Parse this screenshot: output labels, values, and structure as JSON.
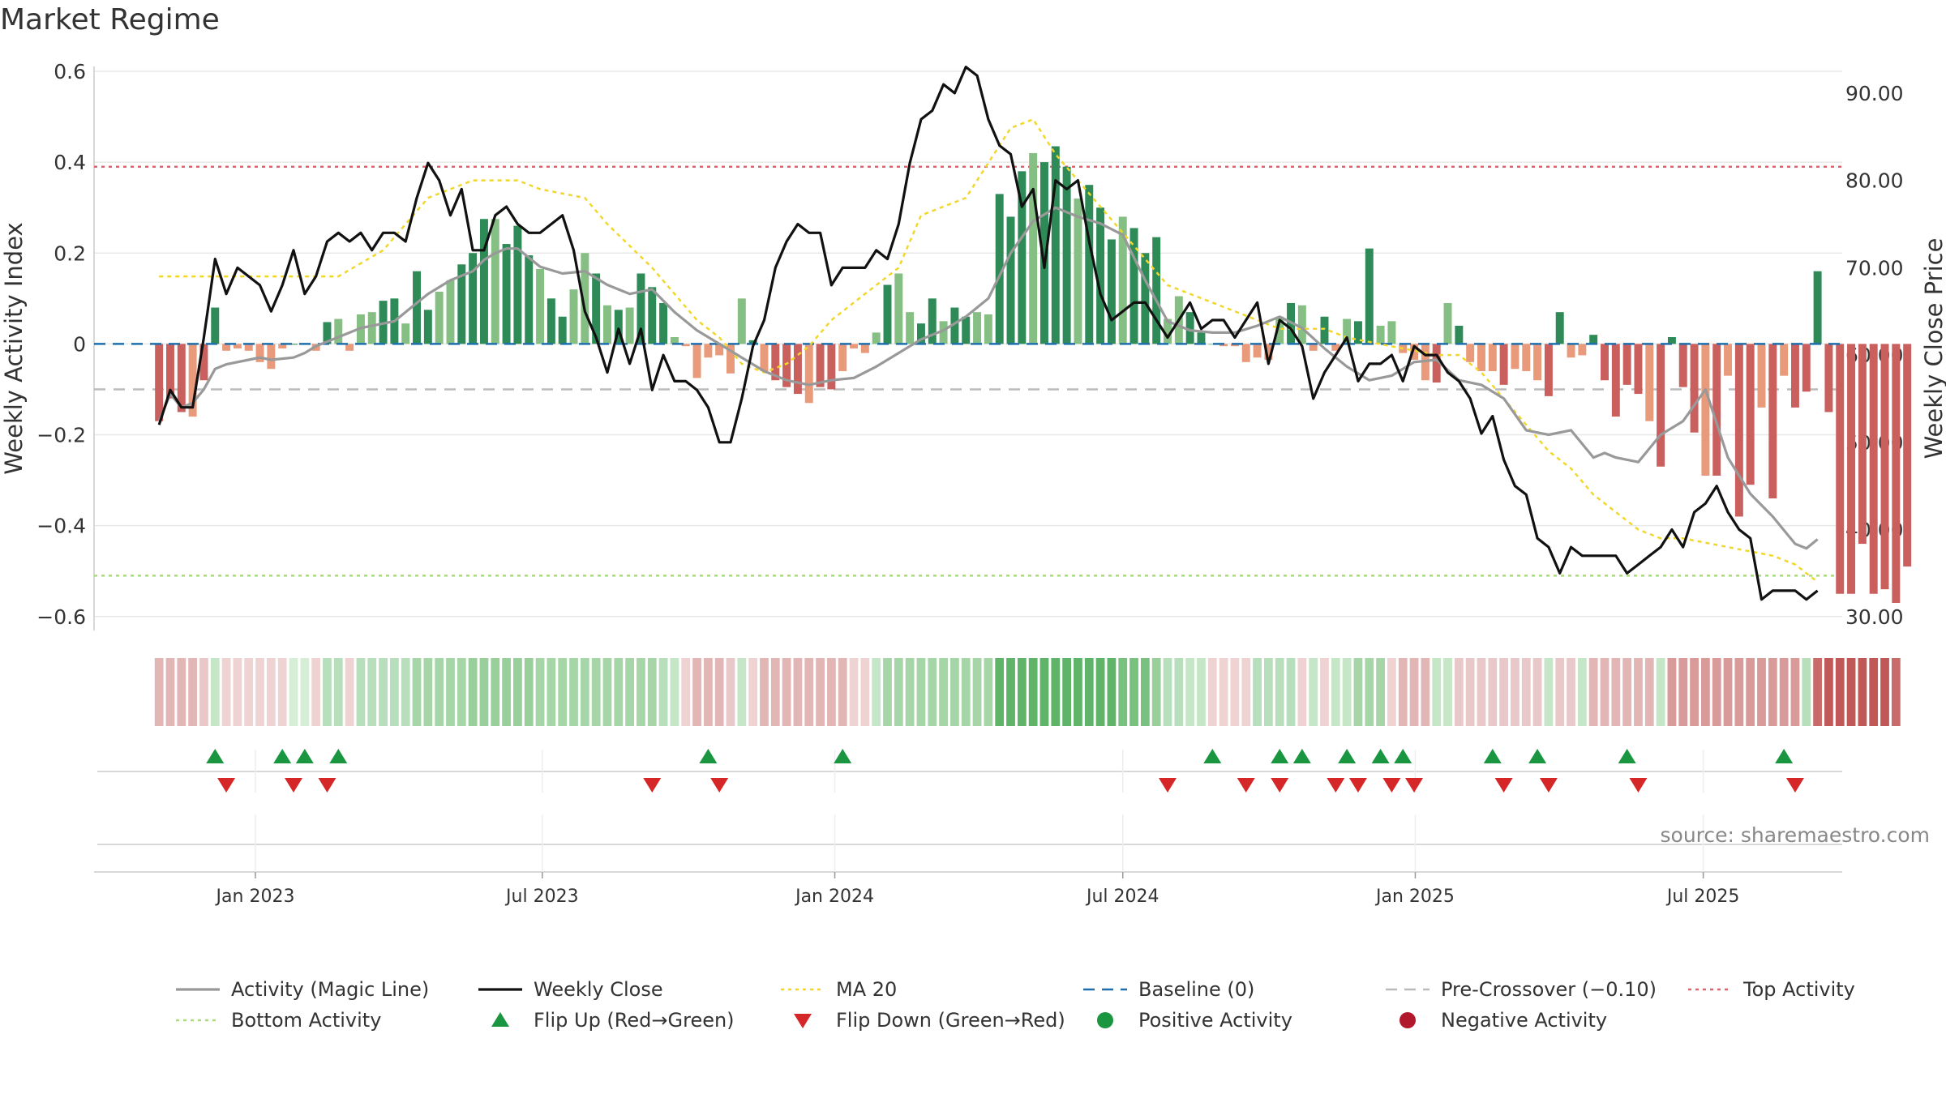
{
  "title": "Market Regime",
  "source": "source: sharemaestro.com",
  "chart_data": {
    "type": "bar",
    "title": "Market Regime",
    "ylabel_left": "Weekly Activity Index",
    "ylabel_right": "Weekly Close Price",
    "ylim_left": [
      -0.62,
      0.6
    ],
    "ylim_right": [
      29.0,
      92.5
    ],
    "yticks_left": [
      "0.6",
      "0.4",
      "0.2",
      "0",
      "−0.2",
      "−0.4",
      "−0.6"
    ],
    "yticks_left_values": [
      0.6,
      0.4,
      0.2,
      0,
      -0.2,
      -0.4,
      -0.6
    ],
    "yticks_right": [
      "90.00",
      "80.00",
      "70.00",
      "60.00",
      "50.00",
      "40.00",
      "30.00"
    ],
    "yticks_right_values": [
      90,
      80,
      70,
      60,
      50,
      40,
      30
    ],
    "x_ticks": [
      "Jan 2023",
      "Jul 2023",
      "Jan 2024",
      "Jul 2024",
      "Jan 2025",
      "Jul 2025"
    ],
    "x_tick_weeks": [
      8.6,
      34.2,
      60.3,
      86.0,
      112.1,
      137.8
    ],
    "x_range_weeks": [
      -5.8,
      150.2
    ],
    "grid": true,
    "legend_position": "bottom",
    "reference_lines": {
      "baseline": 0,
      "pre_crossover": -0.1,
      "top_activity": 0.39,
      "bottom_activity": -0.51
    },
    "colors": {
      "bar_pos_strong": "#2e8b57",
      "bar_pos_weak": "#86bf84",
      "bar_neg_strong": "#c9605e",
      "bar_neg_weak": "#e89a7b",
      "activity_line": "#999999",
      "weekly_close": "#111111",
      "ma20": "#f2d72a",
      "baseline": "#1f6fae",
      "pre_crossover": "#bbbbbb",
      "top_activity": "#e0636f",
      "bottom_activity": "#a9dc7c",
      "flip_up": "#1a9641",
      "flip_down": "#d62728",
      "positive_activity": "#1a9641",
      "negative_activity": "#b2182b"
    },
    "series": [
      {
        "name": "Weekly Activity Index",
        "kind": "bar",
        "values": [
          -0.17,
          -0.12,
          -0.15,
          -0.16,
          -0.08,
          0.08,
          -0.015,
          -0.01,
          -0.015,
          -0.04,
          -0.055,
          -0.01,
          0.0,
          0.0,
          -0.015,
          0.048,
          0.055,
          -0.015,
          0.065,
          0.07,
          0.095,
          0.1,
          0.045,
          0.16,
          0.075,
          0.115,
          0.14,
          0.175,
          0.2,
          0.275,
          0.275,
          0.22,
          0.26,
          0.195,
          0.165,
          0.1,
          0.06,
          0.12,
          0.2,
          0.155,
          0.085,
          0.075,
          0.08,
          0.155,
          0.125,
          0.09,
          0.015,
          -0.005,
          -0.075,
          -0.03,
          -0.025,
          -0.065,
          0.1,
          0.008,
          -0.06,
          -0.08,
          -0.095,
          -0.11,
          -0.13,
          -0.095,
          -0.1,
          -0.06,
          -0.01,
          -0.02,
          0.025,
          0.13,
          0.155,
          0.07,
          0.045,
          0.1,
          0.05,
          0.08,
          0.06,
          0.07,
          0.065,
          0.33,
          0.28,
          0.38,
          0.42,
          0.4,
          0.435,
          0.39,
          0.32,
          0.35,
          0.3,
          0.23,
          0.28,
          0.255,
          0.2,
          0.235,
          0.055,
          0.105,
          0.07,
          0.025,
          0.0,
          -0.005,
          -0.005,
          -0.04,
          -0.03,
          -0.035,
          0.06,
          0.09,
          0.085,
          -0.015,
          0.06,
          -0.015,
          0.055,
          0.05,
          0.21,
          0.04,
          0.05,
          -0.02,
          -0.035,
          -0.08,
          -0.085,
          0.09,
          0.04,
          -0.04,
          -0.06,
          -0.06,
          -0.09,
          -0.055,
          -0.06,
          -0.08,
          -0.115,
          0.07,
          -0.03,
          -0.025,
          0.02,
          -0.08,
          -0.16,
          -0.09,
          -0.11,
          -0.17,
          -0.27,
          0.015,
          -0.095,
          -0.195,
          -0.29,
          -0.29,
          -0.07,
          -0.38,
          -0.31,
          -0.14,
          -0.34,
          -0.07,
          -0.14,
          -0.105,
          0.16,
          -0.15,
          -0.55,
          -0.55,
          -0.44,
          -0.55,
          -0.54,
          -0.57,
          -0.49
        ]
      },
      {
        "name": "Activity (Magic Line)",
        "kind": "line",
        "x": [
          0,
          1,
          2,
          3,
          4,
          5,
          6,
          8,
          9,
          10,
          12,
          13,
          14,
          16,
          18,
          20,
          21,
          23,
          24,
          26,
          28,
          29,
          30,
          31,
          32,
          34,
          36,
          38,
          40,
          42,
          44,
          46,
          48,
          50,
          52,
          54,
          56,
          58,
          60,
          62,
          64,
          66,
          68,
          70,
          72,
          74,
          76,
          78,
          80,
          82,
          84,
          86,
          88,
          90,
          92,
          94,
          96,
          98,
          100,
          102,
          104,
          106,
          108,
          110,
          112,
          114,
          116,
          118,
          120,
          122,
          124,
          126,
          128,
          129,
          130,
          132,
          134,
          136,
          138,
          140,
          142,
          144,
          145,
          146,
          147,
          148
        ],
        "values": [
          -0.17,
          -0.11,
          -0.14,
          -0.13,
          -0.1,
          -0.055,
          -0.045,
          -0.035,
          -0.03,
          -0.035,
          -0.03,
          -0.02,
          -0.005,
          0.015,
          0.035,
          0.045,
          0.05,
          0.09,
          0.11,
          0.14,
          0.16,
          0.185,
          0.2,
          0.21,
          0.21,
          0.17,
          0.155,
          0.16,
          0.13,
          0.11,
          0.12,
          0.07,
          0.03,
          0.0,
          -0.03,
          -0.06,
          -0.08,
          -0.09,
          -0.08,
          -0.075,
          -0.05,
          -0.02,
          0.01,
          0.03,
          0.06,
          0.1,
          0.2,
          0.27,
          0.3,
          0.28,
          0.265,
          0.24,
          0.14,
          0.05,
          0.03,
          0.025,
          0.025,
          0.04,
          0.06,
          0.035,
          -0.01,
          -0.05,
          -0.08,
          -0.07,
          -0.04,
          -0.035,
          -0.08,
          -0.09,
          -0.12,
          -0.19,
          -0.2,
          -0.19,
          -0.25,
          -0.24,
          -0.25,
          -0.26,
          -0.2,
          -0.17,
          -0.1,
          -0.25,
          -0.33,
          -0.38,
          -0.41,
          -0.44,
          -0.45,
          -0.43
        ]
      },
      {
        "name": "Weekly Close",
        "kind": "line",
        "axis": "right",
        "x": [
          0,
          1,
          2,
          3,
          4,
          5,
          6,
          7,
          8,
          9,
          10,
          11,
          12,
          13,
          14,
          15,
          16,
          17,
          18,
          19,
          20,
          21,
          22,
          23,
          24,
          25,
          26,
          27,
          28,
          29,
          30,
          31,
          32,
          33,
          34,
          35,
          36,
          37,
          38,
          39,
          40,
          41,
          42,
          43,
          44,
          45,
          46,
          47,
          48,
          49,
          50,
          51,
          52,
          53,
          54,
          55,
          56,
          57,
          58,
          59,
          60,
          61,
          62,
          63,
          64,
          65,
          66,
          67,
          68,
          69,
          70,
          71,
          72,
          73,
          74,
          75,
          76,
          77,
          78,
          79,
          80,
          81,
          82,
          83,
          84,
          85,
          86,
          87,
          88,
          89,
          90,
          91,
          92,
          93,
          94,
          95,
          96,
          97,
          98,
          99,
          100,
          101,
          102,
          103,
          104,
          105,
          106,
          107,
          108,
          109,
          110,
          111,
          112,
          113,
          114,
          115,
          116,
          117,
          118,
          119,
          120,
          121,
          122,
          123,
          124,
          125,
          126,
          127,
          128,
          129,
          130,
          131,
          132,
          133,
          134,
          135,
          136,
          137,
          138,
          139,
          140,
          141,
          142,
          143,
          144,
          145,
          146,
          147,
          148
        ],
        "values": [
          52,
          56,
          54,
          54,
          62,
          71,
          67,
          70,
          69,
          68,
          65,
          68,
          72,
          67,
          69,
          73,
          74,
          73,
          74,
          72,
          74,
          74,
          73,
          78,
          82,
          80,
          76,
          79,
          72,
          72,
          76,
          77,
          75,
          74,
          74,
          75,
          76,
          72,
          65,
          62,
          58,
          63,
          59,
          63,
          56,
          60,
          57,
          57,
          56,
          54,
          50,
          50,
          55,
          61,
          64,
          70,
          73,
          75,
          74,
          74,
          68,
          70,
          70,
          70,
          72,
          71,
          75,
          82,
          87,
          88,
          91,
          90,
          93,
          92,
          87,
          84,
          83,
          77,
          79,
          70,
          80,
          79,
          80,
          73,
          67,
          64,
          65,
          66,
          66,
          64,
          62,
          64,
          66,
          63,
          64,
          64,
          62,
          64,
          66,
          59,
          64,
          63,
          61,
          55,
          58,
          60,
          62,
          57,
          59,
          59,
          60,
          57,
          61,
          60,
          60,
          58,
          57,
          55,
          51,
          53,
          48,
          45,
          44,
          39,
          38,
          35,
          38,
          37,
          37,
          37,
          37,
          35,
          36,
          37,
          38,
          40,
          38,
          42,
          43,
          45,
          42,
          40,
          39,
          32,
          33,
          33,
          33,
          32,
          33
        ],
        "ylim": [
          29.0,
          92.5
        ]
      },
      {
        "name": "MA 20",
        "kind": "line",
        "axis": "right",
        "x": [
          0,
          10,
          16,
          20,
          24,
          28,
          30,
          32,
          34,
          38,
          40,
          44,
          48,
          50,
          52,
          54,
          56,
          58,
          60,
          62,
          64,
          66,
          68,
          72,
          76,
          78,
          80,
          82,
          84,
          86,
          88,
          90,
          92,
          94,
          96,
          100,
          104,
          106,
          110,
          114,
          116,
          118,
          120,
          122,
          124,
          126,
          128,
          132,
          134,
          136,
          140,
          144,
          146,
          148
        ],
        "values": [
          69,
          69,
          69,
          72,
          78,
          80,
          80,
          80,
          79,
          78,
          75,
          70,
          64,
          62,
          59,
          58,
          59,
          61,
          64,
          66,
          68,
          70,
          76,
          78,
          86,
          87,
          83,
          80,
          77,
          74,
          71,
          68,
          67,
          66,
          65,
          63,
          63,
          62,
          61,
          60,
          60,
          58,
          55,
          52,
          49,
          47,
          44,
          40,
          39,
          39,
          38,
          37,
          36,
          34
        ],
        "ylim": [
          29.0,
          92.5
        ]
      },
      {
        "name": "Baseline (0)",
        "kind": "line",
        "values": [
          0
        ]
      },
      {
        "name": "Pre-Crossover (−0.10)",
        "kind": "line",
        "values": [
          -0.1
        ]
      },
      {
        "name": "Top Activity",
        "kind": "line",
        "values": [
          0.39
        ]
      },
      {
        "name": "Bottom Activity",
        "kind": "line",
        "values": [
          -0.51
        ]
      },
      {
        "name": "Flip Up (Red→Green)",
        "kind": "marker",
        "x": [
          5,
          11,
          13,
          16,
          49,
          61,
          94,
          100,
          102,
          106,
          109,
          111,
          119,
          123,
          131,
          145
        ]
      },
      {
        "name": "Flip Down (Green→Red)",
        "kind": "marker",
        "x": [
          6,
          12,
          15,
          44,
          50,
          90,
          97,
          100,
          105,
          107,
          110,
          112,
          120,
          124,
          132,
          146
        ]
      },
      {
        "name": "Positive Activity",
        "kind": "marker",
        "x": []
      },
      {
        "name": "Negative Activity",
        "kind": "marker",
        "x": []
      }
    ],
    "regime_strip": {
      "colors": [
        "#e3b6b6",
        "#e3b6b6",
        "#e3b6b6",
        "#e3b6b6",
        "#e8c8c8",
        "#c6e6c8",
        "#efd3d3",
        "#efd3d3",
        "#efd3d3",
        "#efd3d3",
        "#efd3d3",
        "#efd3d3",
        "#d6eed6",
        "#d6eed6",
        "#efd3d3",
        "#b8dfbb",
        "#b8dfbb",
        "#efd3d3",
        "#b8dfbb",
        "#b8dfbb",
        "#b8dfbb",
        "#b8dfbb",
        "#b8dfbb",
        "#a6d6a8",
        "#a6d6a8",
        "#a6d6a8",
        "#a6d6a8",
        "#a6d6a8",
        "#98cf9b",
        "#98cf9b",
        "#98cf9b",
        "#98cf9b",
        "#98cf9b",
        "#98cf9b",
        "#a6d6a8",
        "#a6d6a8",
        "#a6d6a8",
        "#a6d6a8",
        "#a6d6a8",
        "#a6d6a8",
        "#a6d6a8",
        "#a6d6a8",
        "#a6d6a8",
        "#a6d6a8",
        "#a6d6a8",
        "#b8dfbb",
        "#c6e6c8",
        "#efd3d3",
        "#e3b6b6",
        "#e3b6b6",
        "#e3b6b6",
        "#e8c8c8",
        "#c6e6c8",
        "#efd3d3",
        "#e3b6b6",
        "#e3b6b6",
        "#e3b6b6",
        "#e3b6b6",
        "#e3b6b6",
        "#e3b6b6",
        "#e3b6b6",
        "#e3b6b6",
        "#efd3d3",
        "#efd3d3",
        "#c6e6c8",
        "#a6d6a8",
        "#a6d6a8",
        "#a6d6a8",
        "#a6d6a8",
        "#a6d6a8",
        "#a6d6a8",
        "#a6d6a8",
        "#a6d6a8",
        "#a6d6a8",
        "#a6d6a8",
        "#5fb46a",
        "#5fb46a",
        "#5fb46a",
        "#5fb46a",
        "#5fb46a",
        "#5fb46a",
        "#5fb46a",
        "#5fb46a",
        "#5fb46a",
        "#5fb46a",
        "#5fb46a",
        "#78c17f",
        "#78c17f",
        "#78c17f",
        "#98cf9b",
        "#b8dfbb",
        "#b8dfbb",
        "#c6e6c8",
        "#c6e6c8",
        "#efd3d3",
        "#efd3d3",
        "#efd3d3",
        "#efd3d3",
        "#b8dfbb",
        "#b8dfbb",
        "#b8dfbb",
        "#b8dfbb",
        "#efd3d3",
        "#c6e6c8",
        "#efd3d3",
        "#c6e6c8",
        "#c6e6c8",
        "#a6d6a8",
        "#a6d6a8",
        "#a6d6a8",
        "#efd3d3",
        "#e3b6b6",
        "#e3b6b6",
        "#e3b6b6",
        "#c6e6c8",
        "#c6e6c8",
        "#e8c8c8",
        "#e8c8c8",
        "#e8c8c8",
        "#e8c8c8",
        "#e8c8c8",
        "#e8c8c8",
        "#e8c8c8",
        "#e8c8c8",
        "#c6e6c8",
        "#e8c8c8",
        "#e8c8c8",
        "#c6e6c8",
        "#e3b6b6",
        "#e3b6b6",
        "#e3b6b6",
        "#e3b6b6",
        "#e3b6b6",
        "#e3b6b6",
        "#c6e6c8",
        "#d99a9a",
        "#d99a9a",
        "#d99a9a",
        "#d99a9a",
        "#d99a9a",
        "#d99a9a",
        "#d99a9a",
        "#d99a9a",
        "#d99a9a",
        "#d99a9a",
        "#d99a9a",
        "#d99a9a",
        "#b8dfbb",
        "#c96b6b",
        "#c05858",
        "#c05858",
        "#c05858",
        "#c05858",
        "#c05858",
        "#c05858",
        "#c96b6b"
      ]
    }
  },
  "legend": [
    {
      "label": "Activity (Magic Line)",
      "icon": "line-solid",
      "color": "#999999"
    },
    {
      "label": "Weekly Close",
      "icon": "line-solid",
      "color": "#111111"
    },
    {
      "label": "MA 20",
      "icon": "line-dotted",
      "color": "#f2d72a"
    },
    {
      "label": "Baseline (0)",
      "icon": "line-dashed",
      "color": "#1f6fae"
    },
    {
      "label": "Pre-Crossover (−0.10)",
      "icon": "line-dashed",
      "color": "#bbbbbb"
    },
    {
      "label": "Top Activity",
      "icon": "line-dotted",
      "color": "#e0636f"
    },
    {
      "label": "Bottom Activity",
      "icon": "line-dotted",
      "color": "#a9dc7c"
    },
    {
      "label": "Flip Up (Red→Green)",
      "icon": "triangle-up",
      "color": "#1a9641"
    },
    {
      "label": "Flip Down (Green→Red)",
      "icon": "triangle-down",
      "color": "#d62728"
    },
    {
      "label": "Positive Activity",
      "icon": "circle",
      "color": "#1a9641"
    },
    {
      "label": "Negative Activity",
      "icon": "circle",
      "color": "#b2182b"
    }
  ]
}
